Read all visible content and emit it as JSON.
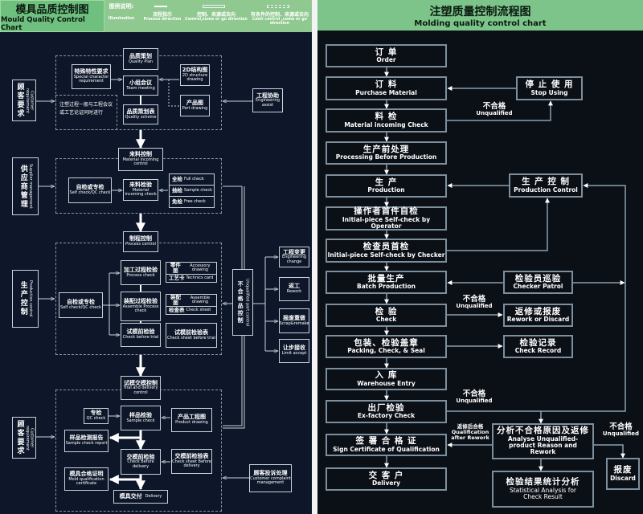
{
  "left": {
    "title_zh": "模具品质控制图",
    "title_en": "Mould Quality Control Chart",
    "legend": {
      "label_zh": "图例说明:",
      "label_en": "Illumination",
      "items": [
        {
          "zh": "流程指示",
          "en": "Process direction"
        },
        {
          "zh": "控制、来源或去向",
          "en": "Control,come or go direction"
        },
        {
          "zh": "有条件的控制、来源或去向",
          "en": "Limit control ,come or go direction"
        }
      ]
    },
    "boxes": {
      "quality_plan": {
        "zh": "品质策划",
        "en": "Quality Plan"
      },
      "special_req": {
        "zh": "特殊特性要求",
        "en": "Special character requirement"
      },
      "team_meeting": {
        "zh": "小组会议",
        "en": "Team meeting"
      },
      "structure_2d": {
        "zh": "2D结构图",
        "en": "2D structure drawing"
      },
      "part_drawing": {
        "zh": "产品图",
        "en": "Part drawing"
      },
      "quality_scheme": {
        "zh": "品质策划表",
        "en": "Quality scheme"
      },
      "customer_req_1": {
        "zh": "顾客要求",
        "en": "Customer requirement"
      },
      "engineering_assist": {
        "zh": "工程协助",
        "en": "Engineering assist"
      },
      "note": "注塑过程一般与工程会议或工艺论证同时进行",
      "material_control": {
        "zh": "来料控制",
        "en": "Material incoming control"
      },
      "supplier_mgmt": {
        "zh": "供应商管理",
        "en": "Supplier management"
      },
      "self_check_1": {
        "zh": "自检或专检",
        "en": "Self check/QC check"
      },
      "material_check": {
        "zh": "来料检验",
        "en": "Material incoming check"
      },
      "check_types": [
        {
          "zh": "全检",
          "en": "Full check"
        },
        {
          "zh": "抽检",
          "en": "Sample check"
        },
        {
          "zh": "免检",
          "en": "Free check"
        }
      ],
      "process_control": {
        "zh": "制程控制",
        "en": "Process control"
      },
      "production_control": {
        "zh": "生产控制",
        "en": "Production control"
      },
      "self_check_2": {
        "zh": "自检或专检",
        "en": "Self check/QC check"
      },
      "process_check": {
        "zh": "加工过程检验",
        "en": "Process check"
      },
      "process_docs": [
        {
          "zh": "零件图",
          "en": "Accessory drawing"
        },
        {
          "zh": "工艺卡",
          "en": "Technics card"
        }
      ],
      "assemble_check": {
        "zh": "装配过程检验",
        "en": "Assemble Process check"
      },
      "assemble_docs": [
        {
          "zh": "装配图",
          "en": "Assemble drawing"
        },
        {
          "zh": "检查表",
          "en": "Check sheet"
        }
      ],
      "check_before_trial": {
        "zh": "试模前检验",
        "en": "Check before trial"
      },
      "check_sheet_trial": {
        "zh": "试模前检验表",
        "en": "Check sheet before trial"
      },
      "unqualified_control": {
        "zh": "不合格品控制",
        "en": "Unqualified part control"
      },
      "engineering_change": {
        "zh": "工程变更",
        "en": "Engineering change"
      },
      "rework": {
        "zh": "返工",
        "en": "Rework"
      },
      "scrap_remake": {
        "zh": "报废重做",
        "en": "Scrap&remake"
      },
      "limit_accept": {
        "zh": "让步接收",
        "en": "Limit accept"
      },
      "trial_delivery": {
        "zh": "试模交模控制",
        "en": "Trial and delivery control"
      },
      "customer_req_2": {
        "zh": "顾客要求",
        "en": "Customer requirement"
      },
      "qc_check": {
        "zh": "专检",
        "en": "QC check"
      },
      "sample_check": {
        "zh": "样品检验",
        "en": "Sample check"
      },
      "product_drawing": {
        "zh": "产品工程图",
        "en": "Product drawing"
      },
      "sample_report": {
        "zh": "样品检测报告",
        "en": "Sample check report"
      },
      "check_before_delivery": {
        "zh": "交模前检验",
        "en": "Check Before delivery"
      },
      "check_sheet_delivery": {
        "zh": "交模前检验表",
        "en": "Check sheet Before delivery"
      },
      "mold_certificate": {
        "zh": "模具合格证明",
        "en": "Mold qualification certificate"
      },
      "delivery": {
        "zh": "模具交付",
        "en": "Delivery"
      },
      "complaint_mgmt": {
        "zh": "顾客投诉处理",
        "en": "Customer complaint management"
      }
    }
  },
  "right": {
    "title_zh": "注塑质量控制流程图",
    "title_en": "Molding quality control chart",
    "main": [
      {
        "zh": "订 单",
        "en": "Order"
      },
      {
        "zh": "订 料",
        "en": "Purchase Material"
      },
      {
        "zh": "料 检",
        "en": "Material incoming Check"
      },
      {
        "zh": "生产前处理",
        "en": "Processing Before Production"
      },
      {
        "zh": "生 产",
        "en": "Production"
      },
      {
        "zh": "操作者首件自检",
        "en": "Initial-piece Self-check by Operator"
      },
      {
        "zh": "检查员首检",
        "en": "Initial-piece Self-check by Checker"
      },
      {
        "zh": "批量生产",
        "en": "Batch Production"
      },
      {
        "zh": "检 验",
        "en": "Check"
      },
      {
        "zh": "包装、检验盖章",
        "en": "Packing, Check, & Seal"
      },
      {
        "zh": "入 库",
        "en": "Warehouse Entry"
      },
      {
        "zh": "出厂检验",
        "en": "Ex-factory Check"
      },
      {
        "zh": "签 署 合 格 证",
        "en": "Sign Certificate of Qualification"
      },
      {
        "zh": "交 客 户",
        "en": "Delivery"
      }
    ],
    "side": {
      "stop_using": {
        "zh": "停 止 使 用",
        "en": "Stop Using"
      },
      "production_control": {
        "zh": "生 产 控 制",
        "en": "Production Control"
      },
      "checker_patrol": {
        "zh": "检验员巡验",
        "en": "Checker Patrol"
      },
      "rework_discard": {
        "zh": "返修或报废",
        "en": "Rework or Discard"
      },
      "check_record": {
        "zh": "检验记录",
        "en": "Check Record"
      },
      "analyse": {
        "zh": "分析不合格原因及返修",
        "en": "Analyse Unqualified-product Reason and Rework"
      },
      "statistics": {
        "zh": "检验结果统计分析",
        "en": "Statistical Analysis for Check Result"
      },
      "discard": {
        "zh": "报废",
        "en": "Discard"
      }
    },
    "labels": {
      "unqualified_1": {
        "zh": "不合格",
        "en": "Unqualified"
      },
      "unqualified_2": {
        "zh": "不合格",
        "en": "Unqualified"
      },
      "unqualified_3": {
        "zh": "不合格",
        "en": "Unqualified"
      },
      "qualified_after_rework": {
        "zh": "返修后合格",
        "en": "Qualification after Rework"
      },
      "unqualified_4": {
        "zh": "不合格",
        "en": "Unqualified"
      }
    }
  },
  "colors": {
    "header_green": "#7cc48a",
    "left_bg": "#0d1729",
    "right_bg": "#0b0f16",
    "box_border": "#7d8e9c"
  }
}
